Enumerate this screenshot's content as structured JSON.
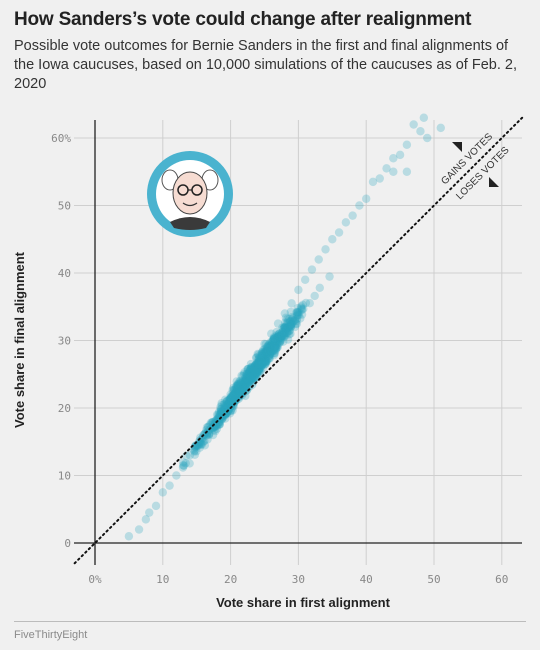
{
  "header": {
    "title": "How Sanders’s vote could change after realignment",
    "subtitle": "Possible vote outcomes for Bernie Sanders in the first and final alignments of the Iowa caucuses, based on 10,000 simulations of the caucuses as of Feb. 2, 2020"
  },
  "footer": {
    "credit": "FiveThirtyEight"
  },
  "colors": {
    "points": "#2ba6c0",
    "portrait_ring": "#4ab3cf",
    "background": "#f0f0f0",
    "grid": "#cfcfcf"
  },
  "chart_data": {
    "type": "scatter",
    "xlabel": "Vote share in first alignment",
    "ylabel": "Vote share in final alignment",
    "xlim": [
      -3,
      63
    ],
    "ylim": [
      -3,
      63
    ],
    "x_ticks": [
      0,
      10,
      20,
      30,
      40,
      50,
      60
    ],
    "x_tick_labels": [
      "0%",
      "10",
      "20",
      "30",
      "40",
      "50",
      "60"
    ],
    "y_ticks": [
      0,
      10,
      20,
      30,
      40,
      50,
      60
    ],
    "y_tick_labels": [
      "0",
      "10",
      "20",
      "30",
      "40",
      "50",
      "60%"
    ],
    "reference_line": "y = x (dotted)",
    "annotations": [
      "GAINS VOTES",
      "LOSES VOTES"
    ],
    "grid": true,
    "trend": {
      "description": "final share ≈ 1.34 × first share − 6 (approximate)",
      "x_range": [
        5,
        52
      ]
    },
    "points_sample": [
      [
        5,
        1
      ],
      [
        6.5,
        2
      ],
      [
        7.5,
        3.5
      ],
      [
        8,
        4.5
      ],
      [
        9,
        5.5
      ],
      [
        10,
        7.5
      ],
      [
        11,
        8.5
      ],
      [
        12,
        10
      ],
      [
        13,
        11.5
      ],
      [
        14,
        13
      ],
      [
        15,
        14.5
      ],
      [
        16,
        16
      ],
      [
        17,
        17.5
      ],
      [
        18,
        19
      ],
      [
        19,
        20.5
      ],
      [
        20,
        22
      ],
      [
        21,
        23.5
      ],
      [
        22,
        25
      ],
      [
        23,
        26.5
      ],
      [
        24,
        28
      ],
      [
        25,
        29.5
      ],
      [
        26,
        31
      ],
      [
        27,
        32.5
      ],
      [
        28,
        34
      ],
      [
        29,
        35.5
      ],
      [
        30,
        37.5
      ],
      [
        31,
        39
      ],
      [
        32,
        40.5
      ],
      [
        33,
        42
      ],
      [
        34,
        43.5
      ],
      [
        35,
        45
      ],
      [
        36,
        46
      ],
      [
        37,
        47.5
      ],
      [
        38,
        48.5
      ],
      [
        39,
        50
      ],
      [
        40,
        51
      ],
      [
        41,
        53.5
      ],
      [
        42,
        54
      ],
      [
        43,
        55.5
      ],
      [
        44,
        57
      ],
      [
        45,
        57.5
      ],
      [
        46,
        59
      ],
      [
        47,
        62
      ],
      [
        48,
        61
      ],
      [
        49,
        60
      ],
      [
        51,
        61.5
      ],
      [
        48.5,
        63
      ],
      [
        44,
        55
      ],
      [
        46,
        55
      ]
    ]
  },
  "portrait": {
    "alt": "Bernie Sanders caricature"
  }
}
